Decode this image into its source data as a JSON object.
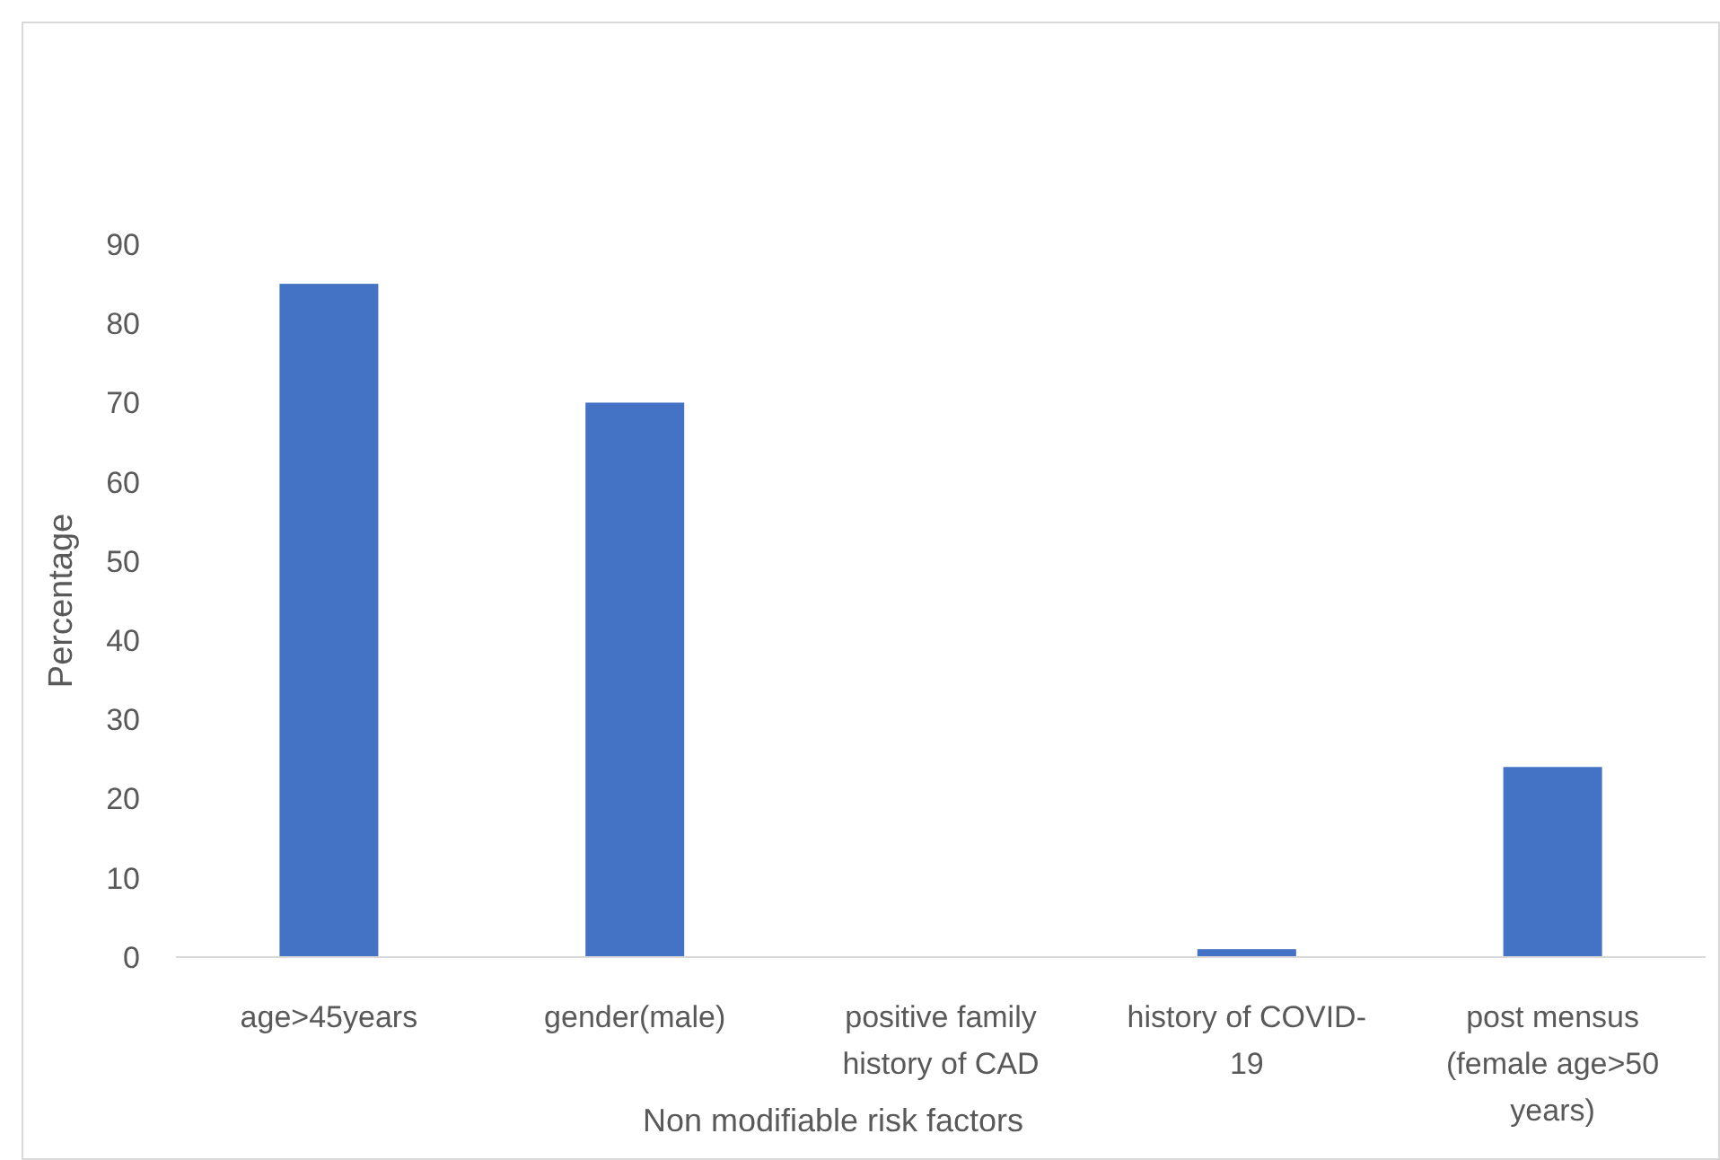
{
  "chart_data": {
    "type": "bar",
    "xlabel": "Non modifiable risk factors",
    "ylabel": "Percentage",
    "categories": [
      "age>45years",
      "gender(male)",
      "positive family history of CAD",
      "history of COVID-19",
      "post mensus (female age>50 years)"
    ],
    "values": [
      85,
      70,
      0,
      1,
      24
    ],
    "color": "#4472c4",
    "ylim": [
      0,
      90
    ],
    "yticks": [
      0,
      10,
      20,
      30,
      40,
      50,
      60,
      70,
      80,
      90
    ],
    "grid": false,
    "legend": false
  }
}
